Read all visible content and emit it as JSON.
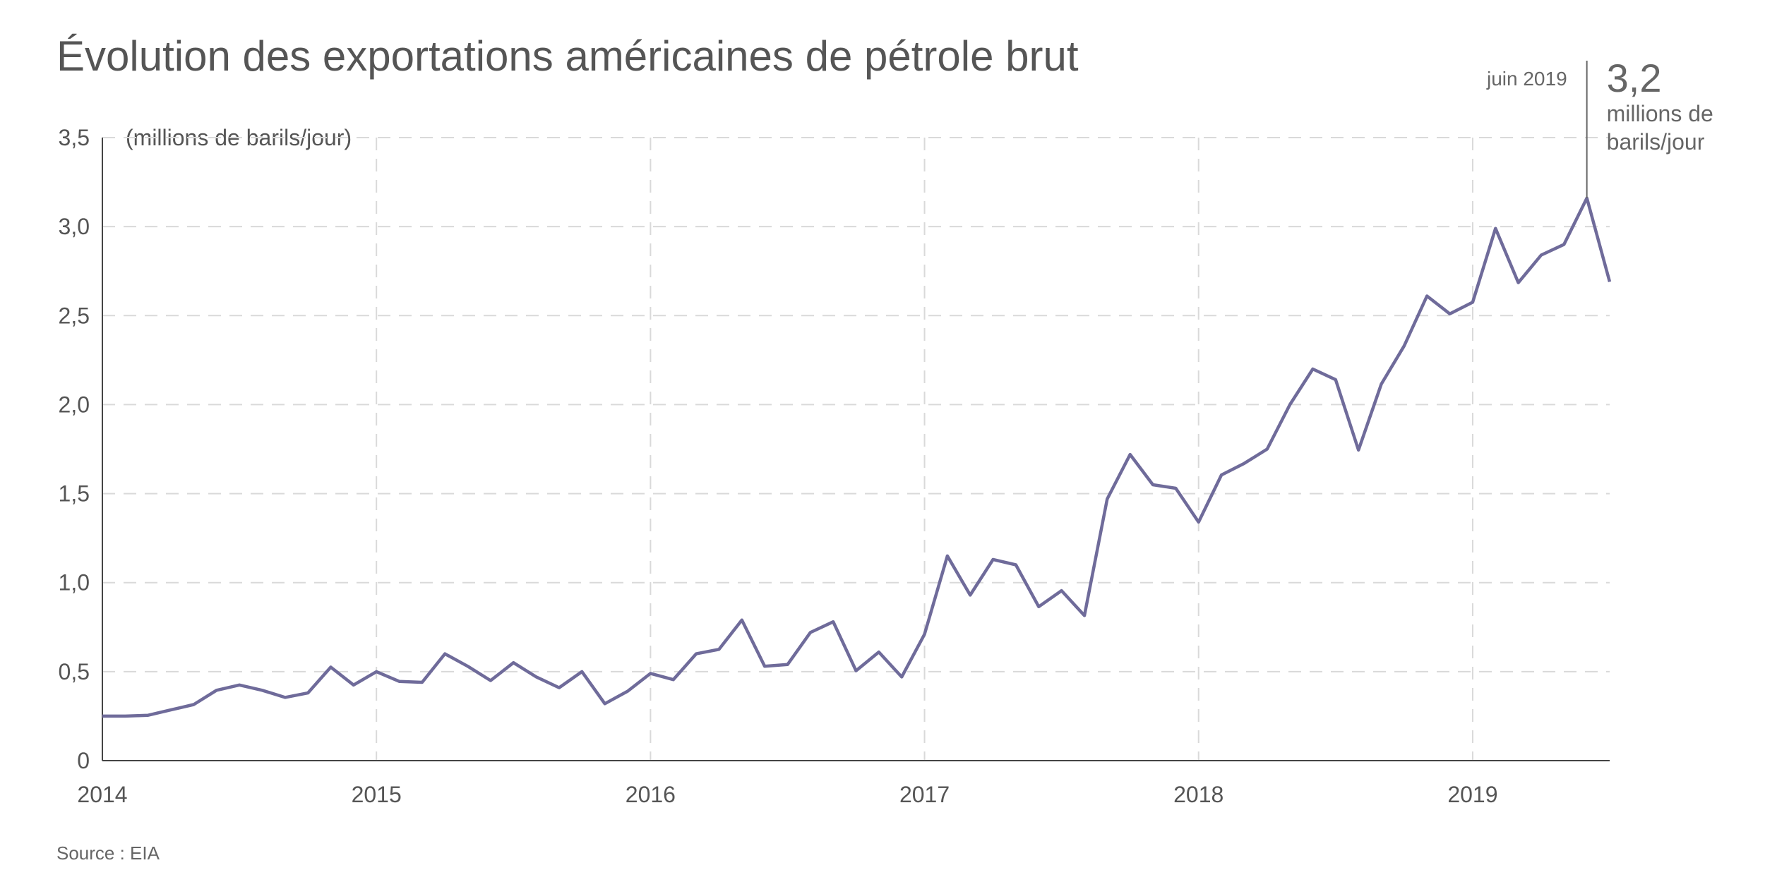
{
  "chart_data": {
    "type": "line",
    "title": "Évolution des exportations américaines de pétrole brut",
    "ylabel": "(millions de barils/jour)",
    "xlabel": "",
    "source": "Source : EIA",
    "xlim": [
      2014.0,
      2019.5
    ],
    "ylim": [
      0,
      3.5
    ],
    "x_ticks": [
      {
        "value": 2014,
        "label": "2014"
      },
      {
        "value": 2015,
        "label": "2015"
      },
      {
        "value": 2016,
        "label": "2016"
      },
      {
        "value": 2017,
        "label": "2017"
      },
      {
        "value": 2018,
        "label": "2018"
      },
      {
        "value": 2019,
        "label": "2019"
      }
    ],
    "y_ticks": [
      {
        "value": 0,
        "label": "0"
      },
      {
        "value": 0.5,
        "label": "0,5"
      },
      {
        "value": 1.0,
        "label": "1,0"
      },
      {
        "value": 1.5,
        "label": "1,5"
      },
      {
        "value": 2.0,
        "label": "2,0"
      },
      {
        "value": 2.5,
        "label": "2,5"
      },
      {
        "value": 3.0,
        "label": "3,0"
      },
      {
        "value": 3.5,
        "label": "3,5"
      }
    ],
    "grid": true,
    "legend": "none",
    "annotation": {
      "date_label": "juin 2019",
      "value_label": "3,2",
      "unit_line1": "millions de",
      "unit_line2": "barils/jour",
      "x": "2019-06",
      "y": 3.16
    },
    "series": [
      {
        "color": "#6f6b9a",
        "x": [
          "2014-01",
          "2014-02",
          "2014-03",
          "2014-04",
          "2014-05",
          "2014-06",
          "2014-07",
          "2014-08",
          "2014-09",
          "2014-10",
          "2014-11",
          "2014-12",
          "2015-01",
          "2015-02",
          "2015-03",
          "2015-04",
          "2015-05",
          "2015-06",
          "2015-07",
          "2015-08",
          "2015-09",
          "2015-10",
          "2015-11",
          "2015-12",
          "2016-01",
          "2016-02",
          "2016-03",
          "2016-04",
          "2016-05",
          "2016-06",
          "2016-07",
          "2016-08",
          "2016-09",
          "2016-10",
          "2016-11",
          "2016-12",
          "2017-01",
          "2017-02",
          "2017-03",
          "2017-04",
          "2017-05",
          "2017-06",
          "2017-07",
          "2017-08",
          "2017-09",
          "2017-10",
          "2017-11",
          "2017-12",
          "2018-01",
          "2018-02",
          "2018-03",
          "2018-04",
          "2018-05",
          "2018-06",
          "2018-07",
          "2018-08",
          "2018-09",
          "2018-10",
          "2018-11",
          "2018-12",
          "2019-01",
          "2019-02",
          "2019-03",
          "2019-04",
          "2019-05",
          "2019-06",
          "2019-07"
        ],
        "values": [
          0.25,
          0.25,
          0.255,
          0.285,
          0.315,
          0.395,
          0.425,
          0.395,
          0.355,
          0.38,
          0.525,
          0.425,
          0.5,
          0.445,
          0.44,
          0.6,
          0.53,
          0.45,
          0.55,
          0.47,
          0.41,
          0.5,
          0.32,
          0.39,
          0.49,
          0.455,
          0.6,
          0.625,
          0.79,
          0.53,
          0.54,
          0.72,
          0.78,
          0.505,
          0.61,
          0.47,
          0.71,
          1.15,
          0.93,
          1.13,
          1.1,
          0.865,
          0.955,
          0.815,
          1.47,
          1.72,
          1.55,
          1.53,
          1.34,
          1.605,
          1.67,
          1.75,
          2.0,
          2.2,
          2.14,
          1.745,
          2.115,
          2.33,
          2.61,
          2.51,
          2.575,
          2.99,
          2.685,
          2.84,
          2.9,
          3.16,
          2.69
        ]
      }
    ]
  }
}
